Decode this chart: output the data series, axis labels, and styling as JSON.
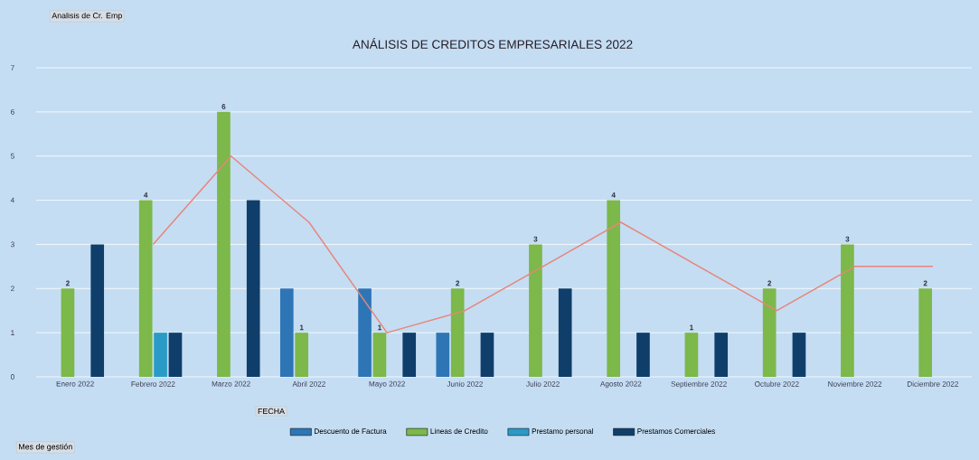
{
  "chart_data": {
    "type": "bar",
    "title": "ANÁLISIS DE CREDITOS EMPRESARIALES 2022",
    "categories": [
      "Enero 2022",
      "Febrero 2022",
      "Marzo 2022",
      "Abril 2022",
      "Mayo 2022",
      "Junio 2022",
      "Julio 2022",
      "Agosto 2022",
      "Septiembre 2022",
      "Octubre 2022",
      "Noviembre 2022",
      "Diciembre 2022"
    ],
    "series": [
      {
        "name": "Descuento de Factura",
        "color": "#2e75b6",
        "values": [
          null,
          null,
          null,
          2,
          2,
          1,
          null,
          null,
          null,
          null,
          null,
          null
        ]
      },
      {
        "name": "Lineas de Credito",
        "color": "#7cb84a",
        "values": [
          2,
          4,
          6,
          1,
          1,
          2,
          3,
          4,
          1,
          2,
          3,
          2
        ],
        "value_labels": [
          "2",
          "4",
          "6",
          "1",
          "1",
          "2",
          "3",
          "4",
          "1",
          "2",
          "3",
          "2"
        ]
      },
      {
        "name": "Prestamo personal",
        "color": "#2a9bc6",
        "values": [
          null,
          1,
          null,
          null,
          null,
          null,
          null,
          null,
          null,
          null,
          null,
          null
        ]
      },
      {
        "name": "Prestamos Comerciales",
        "color": "#0f3e6b",
        "values": [
          3,
          1,
          4,
          null,
          1,
          1,
          2,
          1,
          1,
          1,
          null,
          null
        ]
      },
      {
        "type": "line",
        "color": "#e8857a",
        "values": [
          null,
          3,
          5,
          3.5,
          1,
          1.5,
          2.5,
          3.5,
          2.5,
          1.5,
          2.5,
          2.5
        ]
      }
    ],
    "ylim": [
      0,
      7
    ],
    "yticks": [
      0,
      1,
      2,
      3,
      4,
      5,
      6,
      7
    ],
    "grid": "y",
    "legend": "bottom",
    "annotations": [
      "Analisis de Cr. Emp",
      "FECHA",
      "Mes de gestión"
    ]
  }
}
